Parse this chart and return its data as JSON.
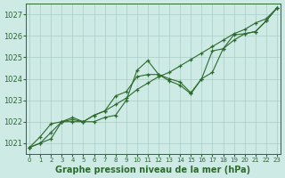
{
  "xlabel": "Graphe pression niveau de la mer (hPa)",
  "x": [
    0,
    1,
    2,
    3,
    4,
    5,
    6,
    7,
    8,
    9,
    10,
    11,
    12,
    13,
    14,
    15,
    16,
    17,
    18,
    19,
    20,
    21,
    22,
    23
  ],
  "series1": [
    1020.8,
    1021.0,
    1021.5,
    1022.0,
    1022.0,
    1022.0,
    1022.3,
    1022.5,
    1022.8,
    1023.1,
    1023.5,
    1023.8,
    1024.1,
    1024.3,
    1024.6,
    1024.9,
    1025.2,
    1025.5,
    1025.8,
    1026.1,
    1026.3,
    1026.6,
    1026.8,
    1027.3
  ],
  "series2": [
    1020.8,
    1021.0,
    1021.2,
    1022.0,
    1022.1,
    1022.0,
    1022.0,
    1022.2,
    1022.3,
    1023.0,
    1024.4,
    1024.85,
    1024.2,
    1023.9,
    1023.7,
    1023.3,
    1024.0,
    1024.3,
    1025.4,
    1025.8,
    1026.1,
    1026.2,
    1026.7,
    1027.3
  ],
  "series3": [
    1020.8,
    1021.3,
    1021.9,
    1022.0,
    1022.2,
    1022.0,
    1022.3,
    1022.5,
    1023.2,
    1023.4,
    1024.1,
    1024.2,
    1024.2,
    1024.0,
    1023.85,
    1023.35,
    1024.0,
    1025.3,
    1025.4,
    1026.05,
    1026.1,
    1026.2,
    1026.7,
    1027.3
  ],
  "line_color": "#2d6a2d",
  "marker_color": "#2d6a2d",
  "bg_color": "#cdeae5",
  "grid_color": "#aaccc8",
  "axis_label_color": "#2d6a2d",
  "tick_color": "#2d6a2d",
  "ylim": [
    1020.5,
    1027.5
  ],
  "yticks": [
    1021,
    1022,
    1023,
    1024,
    1025,
    1026,
    1027
  ],
  "xticks": [
    0,
    1,
    2,
    3,
    4,
    5,
    6,
    7,
    8,
    9,
    10,
    11,
    12,
    13,
    14,
    15,
    16,
    17,
    18,
    19,
    20,
    21,
    22,
    23
  ],
  "xlabel_fontsize": 7,
  "tick_fontsize": 6,
  "marker_size": 3.5,
  "line_width": 0.8
}
